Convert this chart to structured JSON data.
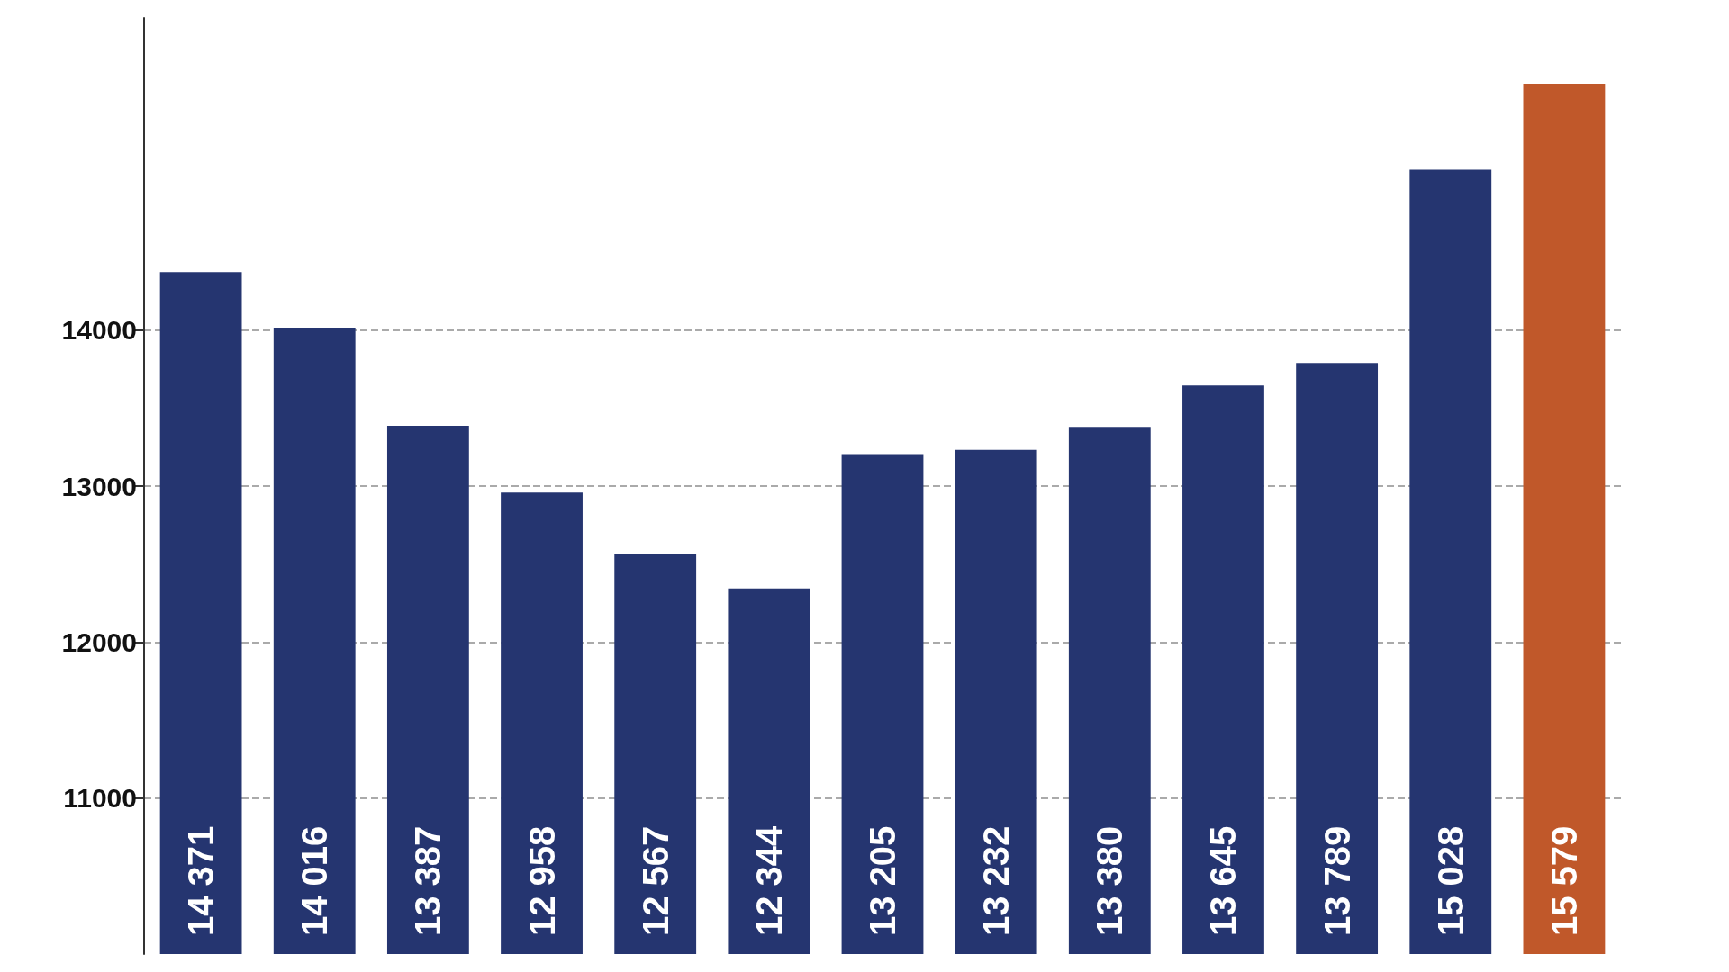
{
  "chart_data": {
    "type": "bar",
    "categories": [
      null,
      null,
      null,
      null,
      null,
      null,
      null,
      null,
      null,
      null,
      null,
      null,
      null
    ],
    "values": [
      14371,
      14016,
      13387,
      12958,
      12567,
      12344,
      13205,
      13232,
      13380,
      13645,
      13789,
      15028,
      15579
    ],
    "colors": [
      "#253570",
      "#253570",
      "#253570",
      "#253570",
      "#253570",
      "#253570",
      "#253570",
      "#253570",
      "#253570",
      "#253570",
      "#253570",
      "#253570",
      "#c0582a"
    ],
    "value_labels": [
      "14 371",
      "14 016",
      "13 387",
      "12 958",
      "12 567",
      "12 344",
      "13 205",
      "13 232",
      "13 380",
      "13 645",
      "13 789",
      "15 028",
      "15 579"
    ],
    "ylim": [
      10000,
      16000
    ],
    "yticks": [
      11000,
      12000,
      13000,
      14000
    ],
    "grid": "y"
  }
}
